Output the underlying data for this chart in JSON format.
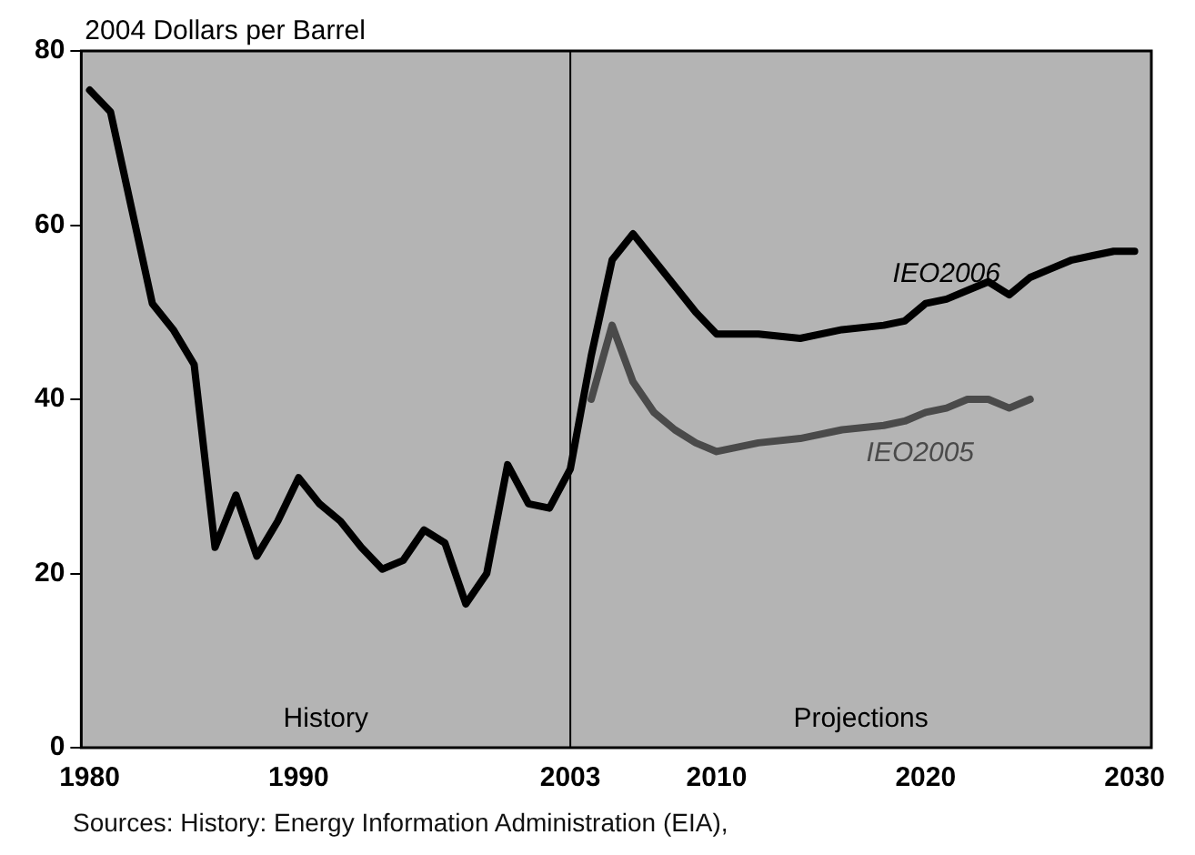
{
  "chart_data": {
    "type": "line",
    "ylabel": "2004 Dollars per Barrel",
    "xlim": [
      1979.6,
      2030.8
    ],
    "xticks": [
      1980,
      1990,
      2003,
      2010,
      2020,
      2030
    ],
    "ylim": [
      0,
      80
    ],
    "yticks": [
      0,
      20,
      40,
      60,
      80
    ],
    "grid": false,
    "legend": false,
    "marker": "none",
    "line_style": "solid",
    "series": [
      {
        "name": "IEO2006",
        "color": "#000000",
        "x": [
          1980,
          1981,
          1982,
          1983,
          1984,
          1985,
          1986,
          1987,
          1988,
          1989,
          1990,
          1991,
          1992,
          1993,
          1994,
          1995,
          1996,
          1997,
          1998,
          1999,
          2000,
          2001,
          2002,
          2003,
          2004,
          2005,
          2006,
          2007,
          2008,
          2009,
          2010,
          2012,
          2014,
          2016,
          2018,
          2019,
          2020,
          2021,
          2022,
          2023,
          2024,
          2025,
          2026,
          2027,
          2028,
          2029,
          2030
        ],
        "values": [
          75.5,
          73,
          62,
          51,
          48,
          44,
          23,
          29,
          22,
          26,
          31,
          28,
          26,
          23,
          20.5,
          21.5,
          25,
          23.5,
          16.5,
          20,
          32.5,
          28,
          27.5,
          32,
          45,
          56,
          59,
          56,
          53,
          50,
          47.5,
          47.5,
          47,
          48,
          48.5,
          49,
          51,
          51.5,
          52.5,
          53.5,
          52,
          54,
          55,
          56,
          56.5,
          57,
          57
        ]
      },
      {
        "name": "IEO2005",
        "color": "#4a4a4a",
        "x": [
          2004,
          2005,
          2006,
          2007,
          2008,
          2009,
          2010,
          2012,
          2014,
          2016,
          2018,
          2019,
          2020,
          2021,
          2022,
          2023,
          2024,
          2025
        ],
        "values": [
          40,
          48.5,
          42,
          38.5,
          36.5,
          35,
          34,
          35,
          35.5,
          36.5,
          37,
          37.5,
          38.5,
          39,
          40,
          40,
          39,
          40
        ]
      }
    ],
    "ref_lines": [
      {
        "axis": "x",
        "value": 2003,
        "color": "#000000"
      }
    ],
    "annotations": [
      "History",
      "Projections",
      "Sources: History: Energy Information Administration (EIA),"
    ]
  }
}
